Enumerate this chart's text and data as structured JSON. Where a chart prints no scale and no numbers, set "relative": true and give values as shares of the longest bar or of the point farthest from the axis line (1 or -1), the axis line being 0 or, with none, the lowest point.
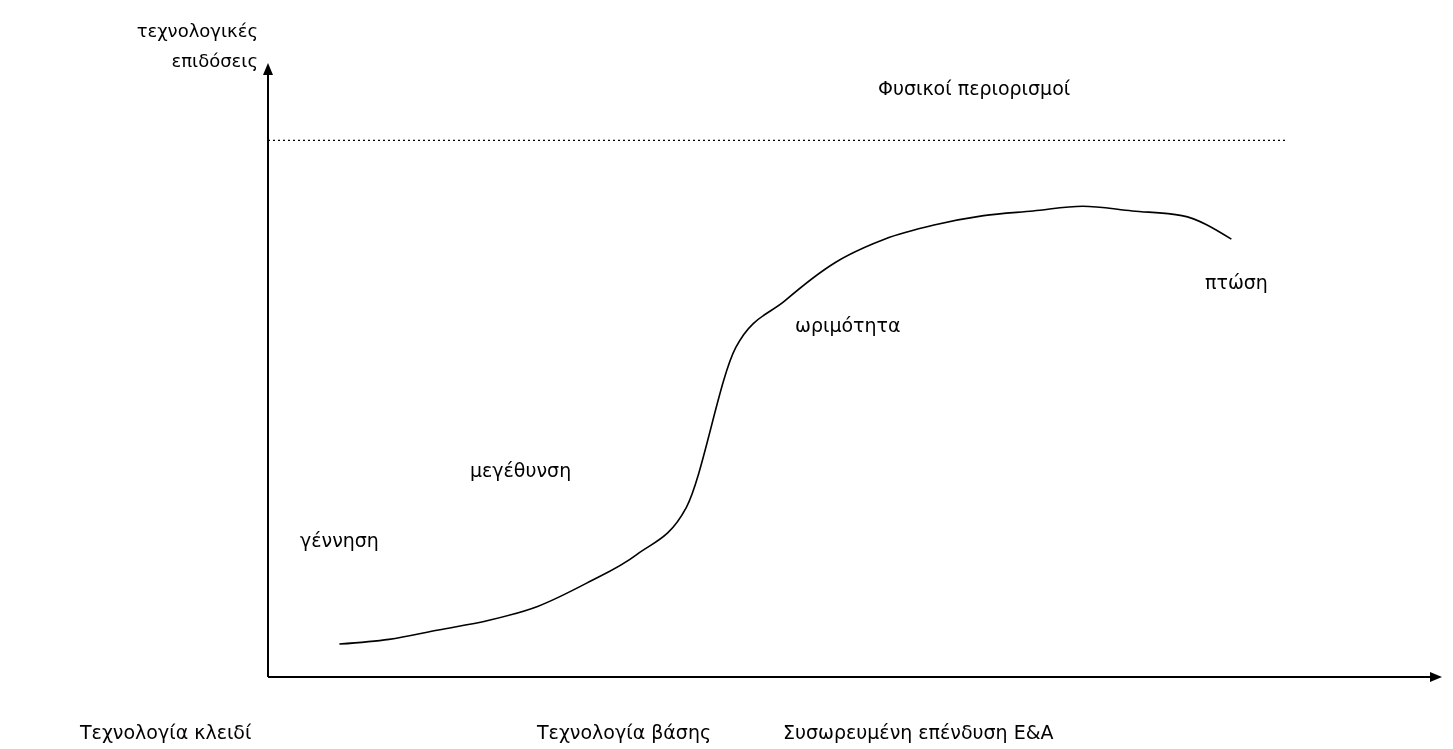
{
  "chart_data": {
    "type": "line",
    "relative": true,
    "xlabel": "Συσωρευμένη επένδυση Ε&Α",
    "categories": [
      null,
      null,
      null,
      null,
      null,
      null,
      null,
      null,
      null,
      null,
      null,
      null,
      null,
      null,
      null,
      null,
      null,
      null,
      null
    ],
    "series": [
      {
        "color": "#000000",
        "values": [
          0.07,
          0.08,
          0.1,
          0.12,
          0.15,
          0.2,
          0.26,
          0.36,
          0.7,
          0.8,
          0.88,
          0.93,
          0.96,
          0.98,
          0.99,
          1,
          0.99,
          0.98,
          0.93
        ]
      }
    ],
    "ref_lines": [
      {
        "axis": "y",
        "value": 1.14,
        "label": "Φυσικοί περιορισμοί",
        "line_style": "dotted",
        "color": "#000000"
      }
    ],
    "annotations": [
      "τεχνολογικές επιδόσεις",
      "γέννηση",
      "μεγέθυνση",
      "ωριμότητα",
      "πτώση",
      "Τεχνολογία κλειδί",
      "Τεχνολογία βάσης"
    ]
  }
}
